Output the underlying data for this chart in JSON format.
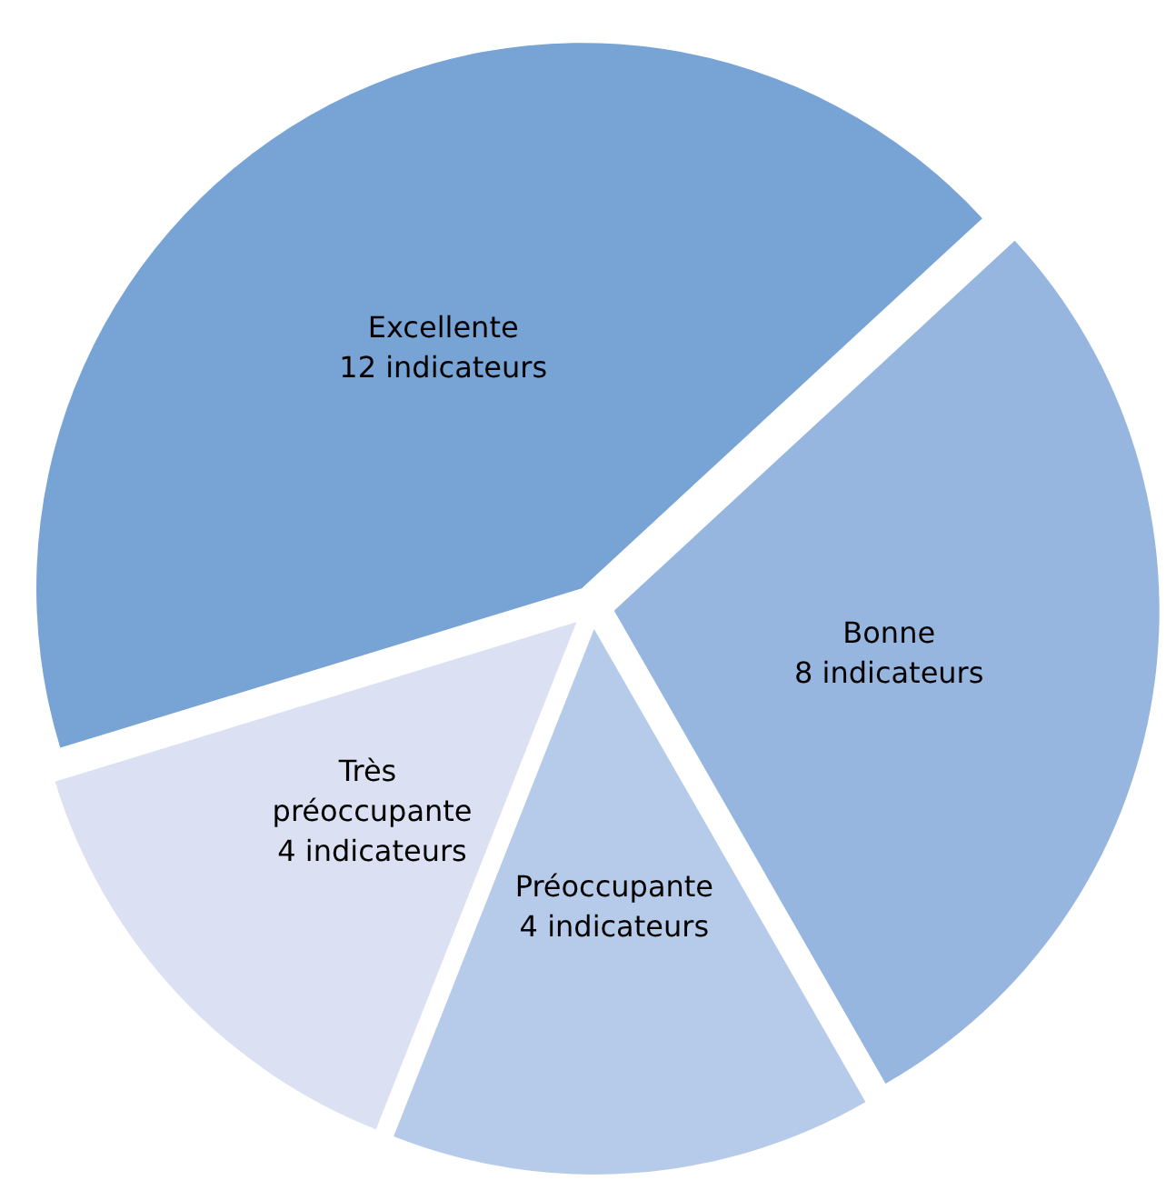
{
  "chart_data": {
    "type": "pie",
    "categories": [
      "Excellente",
      "Bonne",
      "Préoccupante",
      "Très préoccupante"
    ],
    "values": [
      12,
      8,
      4,
      4
    ],
    "value_labels": [
      "12 indicateurs",
      "8 indicateurs",
      "4 indicateurs",
      "4 indicateurs"
    ],
    "colors": [
      "#77a3d5",
      "#96b6df",
      "#b6cbea",
      "#dbe1f2"
    ]
  }
}
